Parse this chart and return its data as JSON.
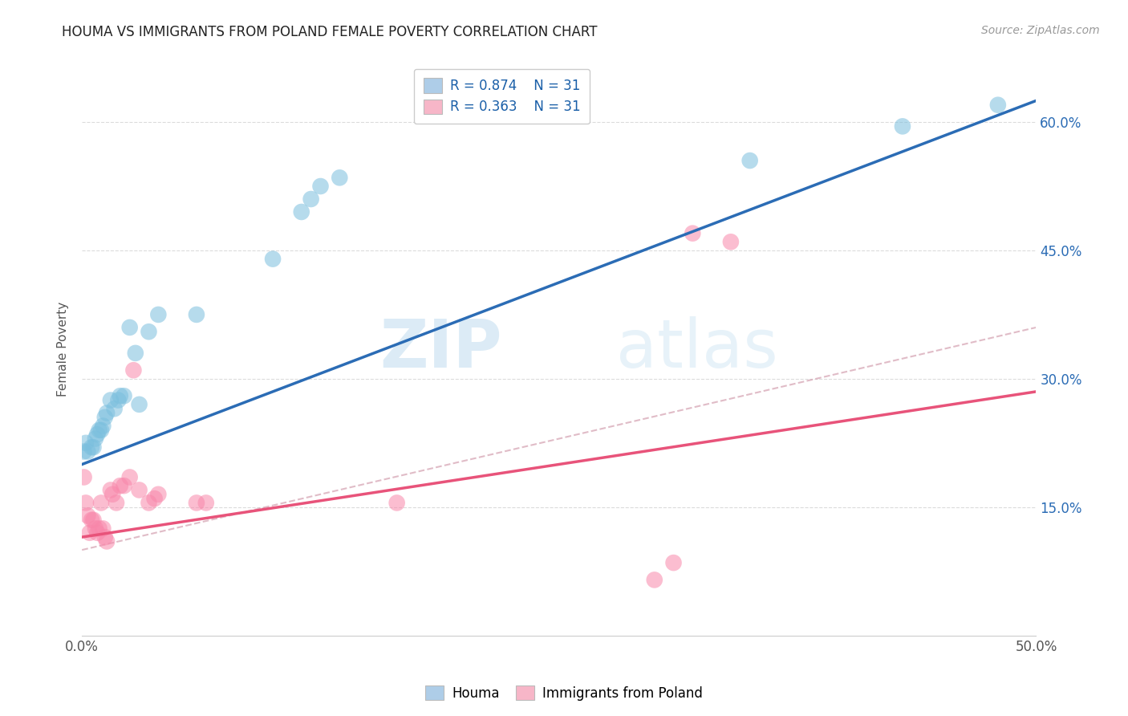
{
  "title": "HOUMA VS IMMIGRANTS FROM POLAND FEMALE POVERTY CORRELATION CHART",
  "source_text": "Source: ZipAtlas.com",
  "ylabel": "Female Poverty",
  "right_yticks": [
    "60.0%",
    "45.0%",
    "30.0%",
    "15.0%"
  ],
  "right_ytick_vals": [
    0.6,
    0.45,
    0.3,
    0.15
  ],
  "legend1_R": "0.874",
  "legend1_N": "31",
  "legend2_R": "0.363",
  "legend2_N": "31",
  "legend1_color": "#aecde8",
  "legend2_color": "#f7b6c8",
  "houma_color": "#7bbfde",
  "poland_color": "#f887aa",
  "houma_line_color": "#2b6cb5",
  "poland_line_color": "#e8537a",
  "poland_dashed_color": "#d4a0b0",
  "background_color": "#ffffff",
  "grid_color": "#cccccc",
  "houma_scatter": [
    [
      0.001,
      0.215
    ],
    [
      0.002,
      0.225
    ],
    [
      0.003,
      0.215
    ],
    [
      0.005,
      0.22
    ],
    [
      0.006,
      0.22
    ],
    [
      0.007,
      0.23
    ],
    [
      0.008,
      0.235
    ],
    [
      0.009,
      0.24
    ],
    [
      0.01,
      0.24
    ],
    [
      0.011,
      0.245
    ],
    [
      0.012,
      0.255
    ],
    [
      0.013,
      0.26
    ],
    [
      0.015,
      0.275
    ],
    [
      0.017,
      0.265
    ],
    [
      0.019,
      0.275
    ],
    [
      0.02,
      0.28
    ],
    [
      0.022,
      0.28
    ],
    [
      0.025,
      0.36
    ],
    [
      0.028,
      0.33
    ],
    [
      0.03,
      0.27
    ],
    [
      0.035,
      0.355
    ],
    [
      0.04,
      0.375
    ],
    [
      0.06,
      0.375
    ],
    [
      0.1,
      0.44
    ],
    [
      0.115,
      0.495
    ],
    [
      0.12,
      0.51
    ],
    [
      0.125,
      0.525
    ],
    [
      0.135,
      0.535
    ],
    [
      0.35,
      0.555
    ],
    [
      0.43,
      0.595
    ],
    [
      0.48,
      0.62
    ]
  ],
  "poland_scatter": [
    [
      0.001,
      0.185
    ],
    [
      0.002,
      0.155
    ],
    [
      0.003,
      0.14
    ],
    [
      0.004,
      0.12
    ],
    [
      0.005,
      0.135
    ],
    [
      0.006,
      0.135
    ],
    [
      0.007,
      0.125
    ],
    [
      0.008,
      0.12
    ],
    [
      0.009,
      0.125
    ],
    [
      0.01,
      0.155
    ],
    [
      0.011,
      0.125
    ],
    [
      0.012,
      0.115
    ],
    [
      0.013,
      0.11
    ],
    [
      0.015,
      0.17
    ],
    [
      0.016,
      0.165
    ],
    [
      0.018,
      0.155
    ],
    [
      0.02,
      0.175
    ],
    [
      0.022,
      0.175
    ],
    [
      0.025,
      0.185
    ],
    [
      0.027,
      0.31
    ],
    [
      0.03,
      0.17
    ],
    [
      0.035,
      0.155
    ],
    [
      0.038,
      0.16
    ],
    [
      0.04,
      0.165
    ],
    [
      0.06,
      0.155
    ],
    [
      0.065,
      0.155
    ],
    [
      0.165,
      0.155
    ],
    [
      0.3,
      0.065
    ],
    [
      0.31,
      0.085
    ],
    [
      0.32,
      0.47
    ],
    [
      0.34,
      0.46
    ]
  ],
  "houma_trendline": [
    [
      0.0,
      0.2
    ],
    [
      0.5,
      0.625
    ]
  ],
  "poland_trendline": [
    [
      0.0,
      0.115
    ],
    [
      0.5,
      0.285
    ]
  ],
  "poland_dashed_trendline": [
    [
      0.0,
      0.1
    ],
    [
      0.5,
      0.36
    ]
  ],
  "watermark_zip": "ZIP",
  "watermark_atlas": "atlas",
  "xlim": [
    0.0,
    0.5
  ],
  "ylim": [
    0.0,
    0.67
  ],
  "xtick_positions": [
    0.0,
    0.1,
    0.2,
    0.3,
    0.4,
    0.5
  ]
}
